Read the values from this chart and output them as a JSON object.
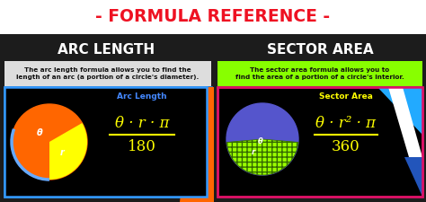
{
  "bg_color": "#1c1c1c",
  "title_bg": "#ffffff",
  "title": "- FORMULA REFERENCE -",
  "title_color": "#ee1122",
  "title_fontsize": 13.5,
  "left_title": "ARC LENGTH",
  "right_title": "SECTOR AREA",
  "section_title_color": "#ffffff",
  "section_title_fontsize": 11,
  "left_desc": "The arc length formula allows you to find the\nlength of an arc (a portion of a circle's diameter).",
  "right_desc": "The sector area formula allows you to\nfind the area of a portion of a circle's interior.",
  "desc_color": "#111111",
  "left_box_bg": "#000000",
  "left_box_border": "#3399ff",
  "right_box_bg": "#000000",
  "right_box_border": "#dd1166",
  "left_header_bg": "#dddddd",
  "right_header_bg": "#88ff00",
  "left_formula_label": "Arc Length",
  "right_formula_label": "Sector Area",
  "formula_label_color_left": "#4488ff",
  "formula_label_color_right": "#ffff00",
  "left_formula_num": "θ · r · π",
  "left_formula_den": "180",
  "right_formula_num": "θ · r² · π",
  "right_formula_den": "360",
  "formula_color": "#ffff00",
  "circle_left_main": "#ff6600",
  "circle_left_sector": "#ffff00",
  "circle_right_bg": "#5555cc",
  "circle_right_sector_fill": "#99ff00",
  "circle_right_sector_edge": "#336600",
  "orange_accent": "#ff6600",
  "right_white_slash": "#ffffff",
  "right_cyan_triangle": "#22aaff",
  "right_blue_corner": "#2255bb"
}
